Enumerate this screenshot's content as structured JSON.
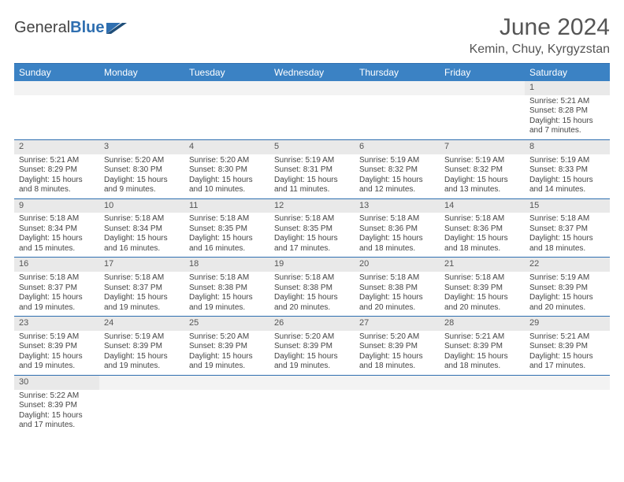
{
  "brand": {
    "part1": "General",
    "part2": "Blue"
  },
  "title": "June 2024",
  "location": "Kemin, Chuy, Kyrgyzstan",
  "colors": {
    "header_bg": "#3b82c4",
    "border": "#2f6fb0",
    "daynum_bg": "#e9e9e9",
    "text": "#444444"
  },
  "columns": [
    "Sunday",
    "Monday",
    "Tuesday",
    "Wednesday",
    "Thursday",
    "Friday",
    "Saturday"
  ],
  "weeks": [
    [
      null,
      null,
      null,
      null,
      null,
      null,
      {
        "d": "1",
        "sr": "5:21 AM",
        "ss": "8:28 PM",
        "dl1": "15 hours",
        "dl2": "and 7 minutes."
      }
    ],
    [
      {
        "d": "2",
        "sr": "5:21 AM",
        "ss": "8:29 PM",
        "dl1": "15 hours",
        "dl2": "and 8 minutes."
      },
      {
        "d": "3",
        "sr": "5:20 AM",
        "ss": "8:30 PM",
        "dl1": "15 hours",
        "dl2": "and 9 minutes."
      },
      {
        "d": "4",
        "sr": "5:20 AM",
        "ss": "8:30 PM",
        "dl1": "15 hours",
        "dl2": "and 10 minutes."
      },
      {
        "d": "5",
        "sr": "5:19 AM",
        "ss": "8:31 PM",
        "dl1": "15 hours",
        "dl2": "and 11 minutes."
      },
      {
        "d": "6",
        "sr": "5:19 AM",
        "ss": "8:32 PM",
        "dl1": "15 hours",
        "dl2": "and 12 minutes."
      },
      {
        "d": "7",
        "sr": "5:19 AM",
        "ss": "8:32 PM",
        "dl1": "15 hours",
        "dl2": "and 13 minutes."
      },
      {
        "d": "8",
        "sr": "5:19 AM",
        "ss": "8:33 PM",
        "dl1": "15 hours",
        "dl2": "and 14 minutes."
      }
    ],
    [
      {
        "d": "9",
        "sr": "5:18 AM",
        "ss": "8:34 PM",
        "dl1": "15 hours",
        "dl2": "and 15 minutes."
      },
      {
        "d": "10",
        "sr": "5:18 AM",
        "ss": "8:34 PM",
        "dl1": "15 hours",
        "dl2": "and 16 minutes."
      },
      {
        "d": "11",
        "sr": "5:18 AM",
        "ss": "8:35 PM",
        "dl1": "15 hours",
        "dl2": "and 16 minutes."
      },
      {
        "d": "12",
        "sr": "5:18 AM",
        "ss": "8:35 PM",
        "dl1": "15 hours",
        "dl2": "and 17 minutes."
      },
      {
        "d": "13",
        "sr": "5:18 AM",
        "ss": "8:36 PM",
        "dl1": "15 hours",
        "dl2": "and 18 minutes."
      },
      {
        "d": "14",
        "sr": "5:18 AM",
        "ss": "8:36 PM",
        "dl1": "15 hours",
        "dl2": "and 18 minutes."
      },
      {
        "d": "15",
        "sr": "5:18 AM",
        "ss": "8:37 PM",
        "dl1": "15 hours",
        "dl2": "and 18 minutes."
      }
    ],
    [
      {
        "d": "16",
        "sr": "5:18 AM",
        "ss": "8:37 PM",
        "dl1": "15 hours",
        "dl2": "and 19 minutes."
      },
      {
        "d": "17",
        "sr": "5:18 AM",
        "ss": "8:37 PM",
        "dl1": "15 hours",
        "dl2": "and 19 minutes."
      },
      {
        "d": "18",
        "sr": "5:18 AM",
        "ss": "8:38 PM",
        "dl1": "15 hours",
        "dl2": "and 19 minutes."
      },
      {
        "d": "19",
        "sr": "5:18 AM",
        "ss": "8:38 PM",
        "dl1": "15 hours",
        "dl2": "and 20 minutes."
      },
      {
        "d": "20",
        "sr": "5:18 AM",
        "ss": "8:38 PM",
        "dl1": "15 hours",
        "dl2": "and 20 minutes."
      },
      {
        "d": "21",
        "sr": "5:18 AM",
        "ss": "8:39 PM",
        "dl1": "15 hours",
        "dl2": "and 20 minutes."
      },
      {
        "d": "22",
        "sr": "5:19 AM",
        "ss": "8:39 PM",
        "dl1": "15 hours",
        "dl2": "and 20 minutes."
      }
    ],
    [
      {
        "d": "23",
        "sr": "5:19 AM",
        "ss": "8:39 PM",
        "dl1": "15 hours",
        "dl2": "and 19 minutes."
      },
      {
        "d": "24",
        "sr": "5:19 AM",
        "ss": "8:39 PM",
        "dl1": "15 hours",
        "dl2": "and 19 minutes."
      },
      {
        "d": "25",
        "sr": "5:20 AM",
        "ss": "8:39 PM",
        "dl1": "15 hours",
        "dl2": "and 19 minutes."
      },
      {
        "d": "26",
        "sr": "5:20 AM",
        "ss": "8:39 PM",
        "dl1": "15 hours",
        "dl2": "and 19 minutes."
      },
      {
        "d": "27",
        "sr": "5:20 AM",
        "ss": "8:39 PM",
        "dl1": "15 hours",
        "dl2": "and 18 minutes."
      },
      {
        "d": "28",
        "sr": "5:21 AM",
        "ss": "8:39 PM",
        "dl1": "15 hours",
        "dl2": "and 18 minutes."
      },
      {
        "d": "29",
        "sr": "5:21 AM",
        "ss": "8:39 PM",
        "dl1": "15 hours",
        "dl2": "and 17 minutes."
      }
    ],
    [
      {
        "d": "30",
        "sr": "5:22 AM",
        "ss": "8:39 PM",
        "dl1": "15 hours",
        "dl2": "and 17 minutes."
      },
      null,
      null,
      null,
      null,
      null,
      null
    ]
  ],
  "labels": {
    "sunrise": "Sunrise: ",
    "sunset": "Sunset: ",
    "daylight": "Daylight: "
  }
}
